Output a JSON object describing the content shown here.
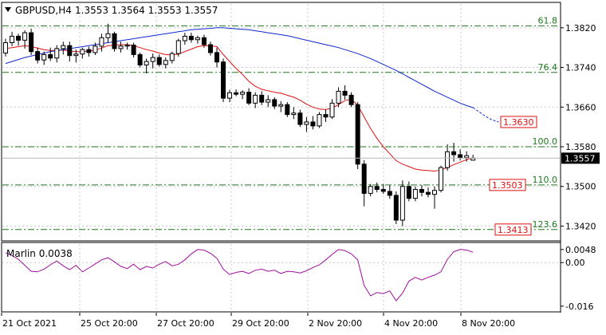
{
  "header": {
    "symbol": "GBPUSD,H4",
    "ohlc": "1.3553 1.3564 1.3553 1.3557"
  },
  "colors": {
    "background": "#ffffff",
    "grid": "#c8c8c8",
    "border": "#000000",
    "candle_up_fill": "#ffffff",
    "candle_down_fill": "#000000",
    "ma_fast": "#e01010",
    "ma_slow": "#1028d0",
    "fibo": "#1a7a1a",
    "marlin": "#a010a0",
    "price_box_bg": "#000000",
    "price_box_text": "#ffffff",
    "red_label_border": "#e01010"
  },
  "chart_data": [
    {
      "type": "candlestick",
      "title": "GBPUSD,H4",
      "y_axis": {
        "ticks": [
          "1.3820",
          "1.3740",
          "1.3660",
          "1.3580",
          "1.3500",
          "1.3420"
        ],
        "tick_values": [
          1.382,
          1.374,
          1.366,
          1.358,
          1.35,
          1.342
        ],
        "ylim": [
          1.3395,
          1.3868
        ]
      },
      "x_axis": {
        "ticks": [
          "21 Oct 2021",
          "25 Oct 20:00",
          "27 Oct 20:00",
          "29 Oct 20:00",
          "2 Nov 20:00",
          "4 Nov 20:00",
          "8 Nov 20:00"
        ]
      },
      "grid": true,
      "current_price": "1.3557",
      "current_price_value": 1.3557,
      "series": [
        {
          "kind": "ohlc",
          "candles": [
            [
              1.3769,
              1.3798,
              1.3762,
              1.379
            ],
            [
              1.379,
              1.3812,
              1.3783,
              1.3803
            ],
            [
              1.3803,
              1.3808,
              1.3784,
              1.3795
            ],
            [
              1.3795,
              1.3815,
              1.3778,
              1.381
            ],
            [
              1.381,
              1.3818,
              1.3765,
              1.3772
            ],
            [
              1.3772,
              1.378,
              1.3748,
              1.3755
            ],
            [
              1.3755,
              1.3772,
              1.3745,
              1.3766
            ],
            [
              1.3766,
              1.378,
              1.3753,
              1.3759
            ],
            [
              1.3759,
              1.3785,
              1.375,
              1.3778
            ],
            [
              1.3778,
              1.3792,
              1.3766,
              1.3784
            ],
            [
              1.3784,
              1.3792,
              1.3752,
              1.3764
            ],
            [
              1.3764,
              1.3776,
              1.375,
              1.3767
            ],
            [
              1.3767,
              1.378,
              1.3758,
              1.3776
            ],
            [
              1.3776,
              1.3782,
              1.3762,
              1.377
            ],
            [
              1.377,
              1.379,
              1.3765,
              1.3783
            ],
            [
              1.3783,
              1.3808,
              1.3772,
              1.38
            ],
            [
              1.38,
              1.3828,
              1.379,
              1.3808
            ],
            [
              1.3808,
              1.3812,
              1.3772,
              1.3778
            ],
            [
              1.3778,
              1.3792,
              1.377,
              1.3783
            ],
            [
              1.3783,
              1.379,
              1.3776,
              1.3785
            ],
            [
              1.3785,
              1.379,
              1.376,
              1.3766
            ],
            [
              1.3766,
              1.377,
              1.374,
              1.3745
            ],
            [
              1.3745,
              1.3758,
              1.3728,
              1.3752
            ],
            [
              1.3752,
              1.3768,
              1.3738,
              1.376
            ],
            [
              1.376,
              1.3766,
              1.3742,
              1.3746
            ],
            [
              1.3746,
              1.376,
              1.3738,
              1.3754
            ],
            [
              1.3754,
              1.3772,
              1.3748,
              1.3768
            ],
            [
              1.3768,
              1.3798,
              1.3762,
              1.3794
            ],
            [
              1.3794,
              1.381,
              1.3786,
              1.3803
            ],
            [
              1.3803,
              1.381,
              1.379,
              1.3796
            ],
            [
              1.3796,
              1.3804,
              1.3788,
              1.38
            ],
            [
              1.38,
              1.3806,
              1.378,
              1.3786
            ],
            [
              1.3786,
              1.3792,
              1.3764,
              1.377
            ],
            [
              1.377,
              1.378,
              1.374,
              1.3751
            ],
            [
              1.3751,
              1.3758,
              1.367,
              1.3678
            ],
            [
              1.3678,
              1.3695,
              1.367,
              1.3689
            ],
            [
              1.3689,
              1.3696,
              1.3682,
              1.3686
            ],
            [
              1.3686,
              1.3694,
              1.3676,
              1.369
            ],
            [
              1.369,
              1.3698,
              1.3664,
              1.3668
            ],
            [
              1.3668,
              1.369,
              1.3658,
              1.3684
            ],
            [
              1.3684,
              1.3692,
              1.3664,
              1.367
            ],
            [
              1.367,
              1.3684,
              1.366,
              1.3675
            ],
            [
              1.3675,
              1.368,
              1.3656,
              1.3662
            ],
            [
              1.3662,
              1.3672,
              1.365,
              1.3665
            ],
            [
              1.3665,
              1.367,
              1.364,
              1.3645
            ],
            [
              1.3645,
              1.366,
              1.3636,
              1.3648
            ],
            [
              1.3648,
              1.3655,
              1.362,
              1.3625
            ],
            [
              1.3625,
              1.364,
              1.361,
              1.363
            ],
            [
              1.363,
              1.3642,
              1.3615,
              1.3622
            ],
            [
              1.3622,
              1.365,
              1.3618,
              1.3645
            ],
            [
              1.3645,
              1.3655,
              1.363,
              1.364
            ],
            [
              1.364,
              1.3676,
              1.3636,
              1.3668
            ],
            [
              1.3668,
              1.37,
              1.366,
              1.3692
            ],
            [
              1.3692,
              1.3704,
              1.3675,
              1.3684
            ],
            [
              1.3684,
              1.369,
              1.366,
              1.3665
            ],
            [
              1.3665,
              1.367,
              1.3535,
              1.3545
            ],
            [
              1.3545,
              1.3553,
              1.346,
              1.3486
            ],
            [
              1.3486,
              1.3505,
              1.348,
              1.35
            ],
            [
              1.35,
              1.3508,
              1.3488,
              1.3494
            ],
            [
              1.3494,
              1.3505,
              1.3485,
              1.349
            ],
            [
              1.349,
              1.3502,
              1.3475,
              1.3482
            ],
            [
              1.3482,
              1.349,
              1.3424,
              1.3432
            ],
            [
              1.3432,
              1.3512,
              1.342,
              1.35
            ],
            [
              1.35,
              1.351,
              1.347,
              1.3476
            ],
            [
              1.3476,
              1.35,
              1.347,
              1.3494
            ],
            [
              1.3494,
              1.3503,
              1.348,
              1.3488
            ],
            [
              1.3488,
              1.3498,
              1.3478,
              1.3484
            ],
            [
              1.3484,
              1.35,
              1.3455,
              1.3492
            ],
            [
              1.3492,
              1.3542,
              1.3488,
              1.3538
            ],
            [
              1.3538,
              1.3585,
              1.3532,
              1.357
            ],
            [
              1.357,
              1.3588,
              1.355,
              1.3564
            ],
            [
              1.3564,
              1.3575,
              1.3553,
              1.3558
            ],
            [
              1.3558,
              1.3571,
              1.355,
              1.3562
            ],
            [
              1.3553,
              1.3564,
              1.3553,
              1.3557
            ]
          ]
        },
        {
          "kind": "line",
          "role": "ma_fast",
          "values": [
            1.3778,
            1.378,
            1.3782,
            1.3784,
            1.3782,
            1.3779,
            1.3776,
            1.3774,
            1.3774,
            1.3775,
            1.3773,
            1.3772,
            1.3772,
            1.3773,
            1.3775,
            1.3779,
            1.3784,
            1.3785,
            1.3786,
            1.3786,
            1.3784,
            1.378,
            1.3776,
            1.3773,
            1.3769,
            1.3766,
            1.3765,
            1.3767,
            1.3772,
            1.3777,
            1.3782,
            1.3784,
            1.3784,
            1.3782,
            1.3766,
            1.3752,
            1.3738,
            1.3726,
            1.3712,
            1.3702,
            1.3696,
            1.3693,
            1.369,
            1.3688,
            1.3684,
            1.368,
            1.3674,
            1.3666,
            1.366,
            1.3656,
            1.3655,
            1.3658,
            1.3665,
            1.3673,
            1.3676,
            1.3664,
            1.364,
            1.3617,
            1.3597,
            1.358,
            1.3566,
            1.3552,
            1.3545,
            1.354,
            1.3535,
            1.3533,
            1.3532,
            1.3531,
            1.3533,
            1.3538,
            1.3544,
            1.3549,
            1.3554,
            1.3558
          ]
        },
        {
          "kind": "line",
          "role": "ma_slow",
          "values": [
            1.3748,
            1.3752,
            1.3756,
            1.376,
            1.3763,
            1.3766,
            1.3769,
            1.3772,
            1.3774,
            1.3776,
            1.3778,
            1.378,
            1.3782,
            1.3784,
            1.3786,
            1.3788,
            1.379,
            1.3792,
            1.3794,
            1.3796,
            1.3798,
            1.38,
            1.3802,
            1.3804,
            1.3806,
            1.3808,
            1.381,
            1.3812,
            1.3814,
            1.3816,
            1.3817,
            1.3818,
            1.3819,
            1.382,
            1.382,
            1.3819,
            1.3818,
            1.3817,
            1.3816,
            1.3814,
            1.3812,
            1.381,
            1.3808,
            1.3806,
            1.3804,
            1.3801,
            1.3798,
            1.3795,
            1.3792,
            1.3789,
            1.3786,
            1.3783,
            1.378,
            1.3776,
            1.3772,
            1.3768,
            1.3763,
            1.3758,
            1.3752,
            1.3746,
            1.374,
            1.3734,
            1.3727,
            1.372,
            1.3713,
            1.3706,
            1.3699,
            1.3692,
            1.3686,
            1.368,
            1.3674,
            1.3668,
            1.3663,
            1.3659
          ]
        },
        {
          "kind": "line",
          "role": "ma_slow_projection",
          "values": [
            1.3659,
            1.365,
            1.3641,
            1.3634,
            1.363
          ]
        }
      ],
      "fibonacci_levels": [
        {
          "label": "61.8",
          "price": 1.3824
        },
        {
          "label": "76.4",
          "price": 1.373
        },
        {
          "label": "100.0",
          "price": 1.358
        },
        {
          "label": "110.0",
          "price": 1.3503
        },
        {
          "label": "123.6",
          "price": 1.3413
        }
      ],
      "red_price_labels": [
        "1.3630",
        "1.3503",
        "1.3413"
      ],
      "red_price_label_values": [
        1.363,
        1.3503,
        1.3413
      ]
    },
    {
      "type": "line",
      "title": "Marlin 0.0038",
      "y_axis": {
        "ticks": [
          "0.0048",
          "0.00",
          "-0.016"
        ],
        "tick_values": [
          0.0048,
          0.0,
          -0.016
        ],
        "ylim": [
          -0.0178,
          0.0068
        ]
      },
      "zero_line": true,
      "series": [
        {
          "name": "Marlin",
          "values": [
            0.0036,
            0.0026,
            0.0012,
            -0.001,
            -0.0032,
            -0.0034,
            -0.0024,
            -0.0008,
            0.0006,
            -0.0012,
            -0.0026,
            -0.001,
            -0.0034,
            -0.002,
            -0.0005,
            0.001,
            0.0018,
            0.0003,
            -0.0014,
            -0.0022,
            -0.0006,
            -0.0026,
            -0.0014,
            -0.002,
            -0.0006,
            0.0004,
            -0.0012,
            -0.0006,
            0.001,
            0.0032,
            0.0048,
            0.0046,
            0.0034,
            0.0016,
            -0.0024,
            -0.0044,
            -0.0036,
            -0.0032,
            -0.004,
            -0.0028,
            -0.0024,
            -0.0032,
            -0.0028,
            -0.004,
            -0.0032,
            -0.0034,
            -0.0038,
            -0.003,
            -0.0018,
            -0.0008,
            0.001,
            0.003,
            0.0048,
            0.0044,
            0.0032,
            0.001,
            -0.0084,
            -0.0122,
            -0.011,
            -0.0114,
            -0.0104,
            -0.014,
            -0.0112,
            -0.0068,
            -0.0054,
            -0.0064,
            -0.0054,
            -0.0046,
            -0.0034,
            0.0012,
            0.004,
            0.0048,
            0.0046,
            0.0038
          ]
        }
      ]
    }
  ]
}
